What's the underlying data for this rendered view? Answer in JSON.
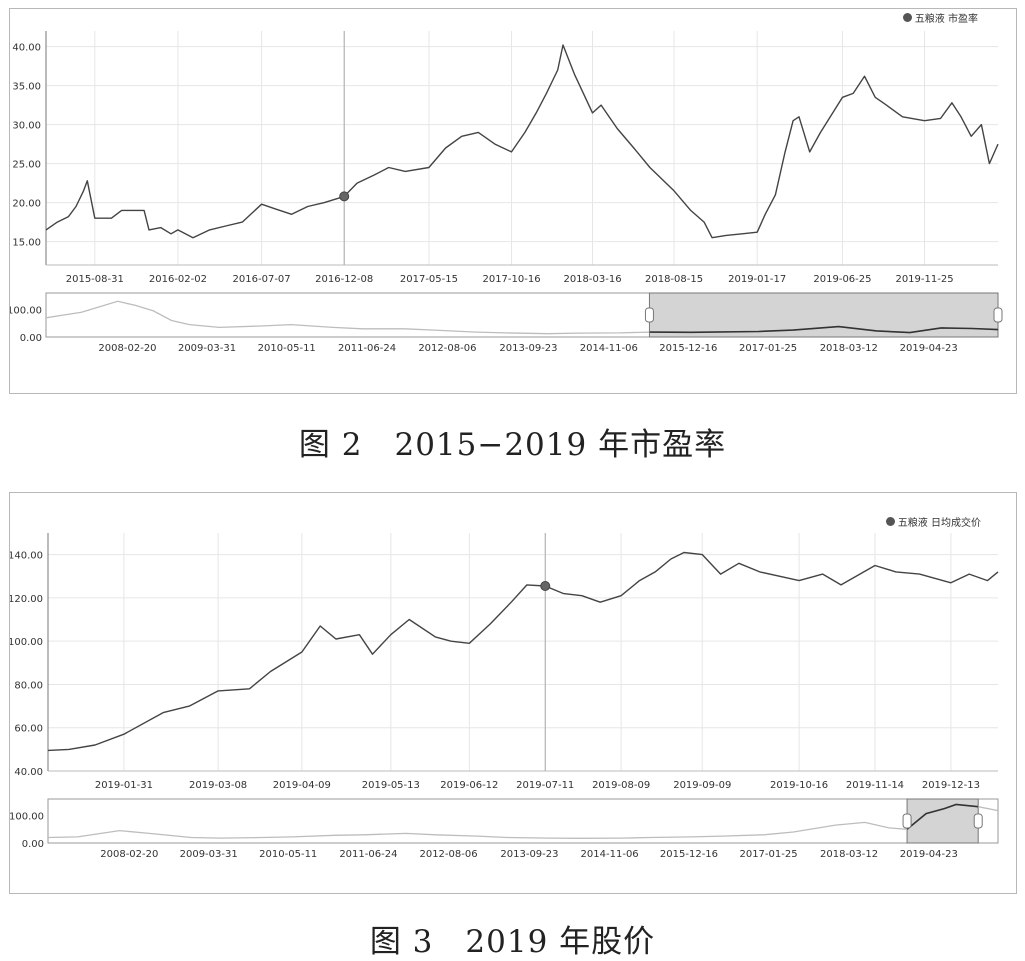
{
  "chart_data": [
    {
      "type": "line",
      "title": "",
      "legend": "五粮液 市盈率",
      "legend_position": "top-right",
      "xlabel": "",
      "ylabel": "",
      "ylim": [
        12,
        42
      ],
      "y_ticks": [
        "15.00",
        "20.00",
        "25.00",
        "30.00",
        "35.00",
        "40.00"
      ],
      "x_ticks": [
        "2015-08-31",
        "2016-02-02",
        "2016-07-07",
        "2016-12-08",
        "2017-05-15",
        "2017-10-16",
        "2018-03-16",
        "2018-08-15",
        "2019-01-17",
        "2019-06-25",
        "2019-11-25"
      ],
      "grid": true,
      "marker": {
        "x": "2016-12-08",
        "y": 20.8
      },
      "series": [
        {
          "name": "五粮液 市盈率",
          "x": [
            "2015-06-01",
            "2015-06-22",
            "2015-07-13",
            "2015-07-27",
            "2015-08-10",
            "2015-08-17",
            "2015-08-31",
            "2015-09-10",
            "2015-10-01",
            "2015-10-20",
            "2015-11-05",
            "2015-11-20",
            "2015-12-01",
            "2015-12-10",
            "2016-01-01",
            "2016-01-20",
            "2016-02-02",
            "2016-03-01",
            "2016-04-01",
            "2016-05-01",
            "2016-06-01",
            "2016-07-07",
            "2016-08-01",
            "2016-09-01",
            "2016-10-01",
            "2016-11-01",
            "2016-12-08",
            "2017-01-01",
            "2017-02-01",
            "2017-03-01",
            "2017-04-01",
            "2017-05-15",
            "2017-06-15",
            "2017-07-15",
            "2017-08-15",
            "2017-09-15",
            "2017-10-16",
            "2017-11-10",
            "2017-12-01",
            "2017-12-20",
            "2018-01-10",
            "2018-01-20",
            "2018-02-10",
            "2018-03-16",
            "2018-04-01",
            "2018-05-01",
            "2018-06-01",
            "2018-07-01",
            "2018-08-15",
            "2018-09-15",
            "2018-10-10",
            "2018-10-25",
            "2018-11-20",
            "2018-12-20",
            "2019-01-17",
            "2019-02-01",
            "2019-02-20",
            "2019-03-10",
            "2019-03-25",
            "2019-04-05",
            "2019-04-25",
            "2019-05-15",
            "2019-06-25",
            "2019-07-15",
            "2019-08-05",
            "2019-08-25",
            "2019-09-15",
            "2019-10-15",
            "2019-11-25",
            "2019-12-25",
            "2020-01-15",
            "2020-02-01",
            "2020-02-20",
            "2020-03-10",
            "2020-03-25",
            "2020-04-10"
          ],
          "values": [
            16.5,
            17.5,
            18.2,
            19.5,
            21.5,
            22.8,
            18.0,
            18.0,
            18.0,
            19.0,
            19.0,
            19.0,
            19.0,
            16.5,
            16.8,
            16.0,
            16.5,
            15.5,
            16.5,
            17.0,
            17.5,
            19.8,
            19.2,
            18.5,
            19.5,
            20.0,
            20.8,
            22.5,
            23.5,
            24.5,
            24.0,
            24.5,
            27.0,
            28.5,
            29.0,
            27.5,
            26.5,
            29.0,
            31.5,
            34.0,
            37.0,
            40.2,
            36.5,
            31.5,
            32.5,
            29.5,
            27.0,
            24.5,
            21.5,
            19.0,
            17.5,
            15.5,
            15.8,
            16.0,
            16.2,
            18.5,
            21.0,
            26.5,
            30.5,
            31.0,
            26.5,
            29.0,
            33.5,
            34.0,
            36.2,
            33.5,
            32.5,
            31.0,
            30.5,
            30.8,
            32.8,
            31.0,
            28.5,
            30.0,
            25.0,
            27.5
          ]
        }
      ]
    },
    {
      "type": "area",
      "title": "",
      "xlabel": "",
      "ylabel": "",
      "ylim": [
        0,
        160
      ],
      "y_ticks": [
        "0.00",
        "100.00"
      ],
      "x_ticks": [
        "2008-02-20",
        "2009-03-31",
        "2010-05-11",
        "2011-06-24",
        "2012-08-06",
        "2013-09-23",
        "2014-11-06",
        "2015-12-16",
        "2017-01-25",
        "2018-03-12",
        "2019-04-23"
      ],
      "selected_range": [
        "2015-06-01",
        "2020-04-10"
      ],
      "series": [
        {
          "x": [
            "2007-01-01",
            "2007-04-01",
            "2007-07-01",
            "2007-10-01",
            "2008-01-01",
            "2008-04-01",
            "2008-07-01",
            "2008-10-01",
            "2009-01-01",
            "2009-06-01",
            "2010-01-01",
            "2010-06-01",
            "2011-01-01",
            "2011-06-01",
            "2012-01-01",
            "2012-06-01",
            "2013-01-01",
            "2013-06-01",
            "2014-01-01",
            "2014-06-01",
            "2015-01-01",
            "2015-06-01",
            "2016-01-01",
            "2016-12-08",
            "2017-06-01",
            "2018-01-20",
            "2018-08-01",
            "2019-01-17",
            "2019-06-25",
            "2019-12-01",
            "2020-04-10"
          ],
          "values": [
            70,
            80,
            90,
            110,
            130,
            115,
            95,
            60,
            45,
            35,
            40,
            45,
            35,
            30,
            30,
            25,
            18,
            15,
            12,
            14,
            15,
            18,
            17,
            20,
            25,
            38,
            22,
            16,
            33,
            31,
            27
          ]
        }
      ]
    },
    {
      "type": "line",
      "title": "",
      "legend": "五粮液 日均成交价",
      "legend_position": "top-right",
      "xlabel": "",
      "ylabel": "",
      "ylim": [
        40,
        150
      ],
      "y_ticks": [
        "40.00",
        "60.00",
        "80.00",
        "100.00",
        "120.00",
        "140.00"
      ],
      "x_ticks": [
        "2019-01-31",
        "2019-03-08",
        "2019-04-09",
        "2019-05-13",
        "2019-06-12",
        "2019-07-11",
        "2019-08-09",
        "2019-09-09",
        "2019-10-16",
        "2019-11-14",
        "2019-12-13"
      ],
      "grid": true,
      "marker": {
        "x": "2019-07-11",
        "y": 125.5
      },
      "series": [
        {
          "name": "五粮液 日均成交价",
          "x": [
            "2019-01-02",
            "2019-01-10",
            "2019-01-20",
            "2019-01-31",
            "2019-02-15",
            "2019-02-25",
            "2019-03-08",
            "2019-03-20",
            "2019-03-28",
            "2019-04-09",
            "2019-04-16",
            "2019-04-22",
            "2019-05-01",
            "2019-05-06",
            "2019-05-13",
            "2019-05-20",
            "2019-05-30",
            "2019-06-05",
            "2019-06-12",
            "2019-06-20",
            "2019-06-28",
            "2019-07-04",
            "2019-07-11",
            "2019-07-18",
            "2019-07-25",
            "2019-08-01",
            "2019-08-09",
            "2019-08-16",
            "2019-08-22",
            "2019-08-28",
            "2019-09-02",
            "2019-09-09",
            "2019-09-16",
            "2019-09-23",
            "2019-10-01",
            "2019-10-16",
            "2019-10-25",
            "2019-11-01",
            "2019-11-14",
            "2019-11-22",
            "2019-12-01",
            "2019-12-13",
            "2019-12-20",
            "2019-12-27",
            "2019-12-31"
          ],
          "values": [
            49.5,
            50,
            52,
            57,
            67,
            70,
            77,
            78,
            86,
            95,
            107,
            101,
            103,
            94,
            103,
            110,
            102,
            100,
            99,
            108,
            118,
            126,
            125.5,
            122,
            121,
            118,
            121,
            128,
            132,
            138,
            141,
            140,
            131,
            136,
            132,
            128,
            131,
            126,
            135,
            132,
            131,
            127,
            131,
            128,
            132
          ]
        }
      ]
    },
    {
      "type": "area",
      "title": "",
      "xlabel": "",
      "ylabel": "",
      "ylim": [
        0,
        160
      ],
      "y_ticks": [
        "0.00",
        "100.00"
      ],
      "x_ticks": [
        "2008-02-20",
        "2009-03-31",
        "2010-05-11",
        "2011-06-24",
        "2012-08-06",
        "2013-09-23",
        "2014-11-06",
        "2015-12-16",
        "2017-01-25",
        "2018-03-12",
        "2019-04-23"
      ],
      "selected_range": [
        "2019-01-02",
        "2019-12-31"
      ],
      "series": [
        {
          "x": [
            "2007-01-01",
            "2007-06-01",
            "2008-01-01",
            "2008-06-01",
            "2009-01-01",
            "2009-06-01",
            "2010-01-01",
            "2010-06-01",
            "2011-01-01",
            "2011-06-01",
            "2012-01-01",
            "2012-06-01",
            "2013-01-01",
            "2013-06-01",
            "2014-01-01",
            "2014-06-01",
            "2015-01-01",
            "2015-06-01",
            "2016-01-01",
            "2016-06-01",
            "2017-01-01",
            "2017-06-01",
            "2018-01-01",
            "2018-06-01",
            "2018-10-01",
            "2019-01-02",
            "2019-04-09",
            "2019-07-11",
            "2019-09-09",
            "2019-12-31",
            "2020-04-10"
          ],
          "values": [
            20,
            22,
            45,
            35,
            20,
            18,
            20,
            22,
            28,
            30,
            35,
            30,
            25,
            20,
            18,
            17,
            18,
            20,
            22,
            25,
            30,
            40,
            65,
            75,
            55,
            50,
            107,
            125,
            140,
            132,
            118
          ]
        }
      ]
    }
  ],
  "captions": {
    "fig2": "图 2　2015−2019 年市盈率",
    "fig3": "图 3　2019 年股价"
  }
}
